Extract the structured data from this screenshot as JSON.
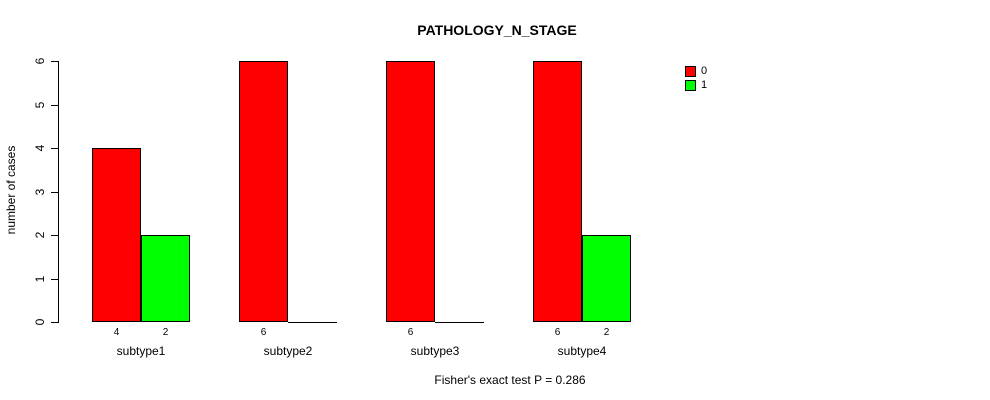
{
  "header": {
    "title": "PATHOLOGY_N_STAGE"
  },
  "footer": {
    "annotation": "Fisher's exact test P = 0.286"
  },
  "colors": {
    "series_0": "#FF0000",
    "series_1": "#00FF00",
    "axis": "#000000",
    "background": "#FFFFFF"
  },
  "chart_data": {
    "type": "bar",
    "title": "PATHOLOGY_N_STAGE",
    "xlabel": "",
    "ylabel": "number of cases",
    "ylim": [
      0,
      6
    ],
    "yticks": [
      0,
      1,
      2,
      3,
      4,
      5,
      6
    ],
    "grid": false,
    "legend_position": "top-right",
    "categories": [
      "subtype1",
      "subtype2",
      "subtype3",
      "subtype4"
    ],
    "series": [
      {
        "name": "0",
        "color": "#FF0000",
        "values": [
          4,
          6,
          6,
          6
        ]
      },
      {
        "name": "1",
        "color": "#00FF00",
        "values": [
          2,
          0,
          0,
          2
        ]
      }
    ],
    "bar_value_labels": [
      "4",
      "2",
      "6",
      "",
      "6",
      "",
      "6",
      "2"
    ],
    "show_zero_value_labels": false,
    "annotation": "Fisher's exact test P = 0.286"
  }
}
